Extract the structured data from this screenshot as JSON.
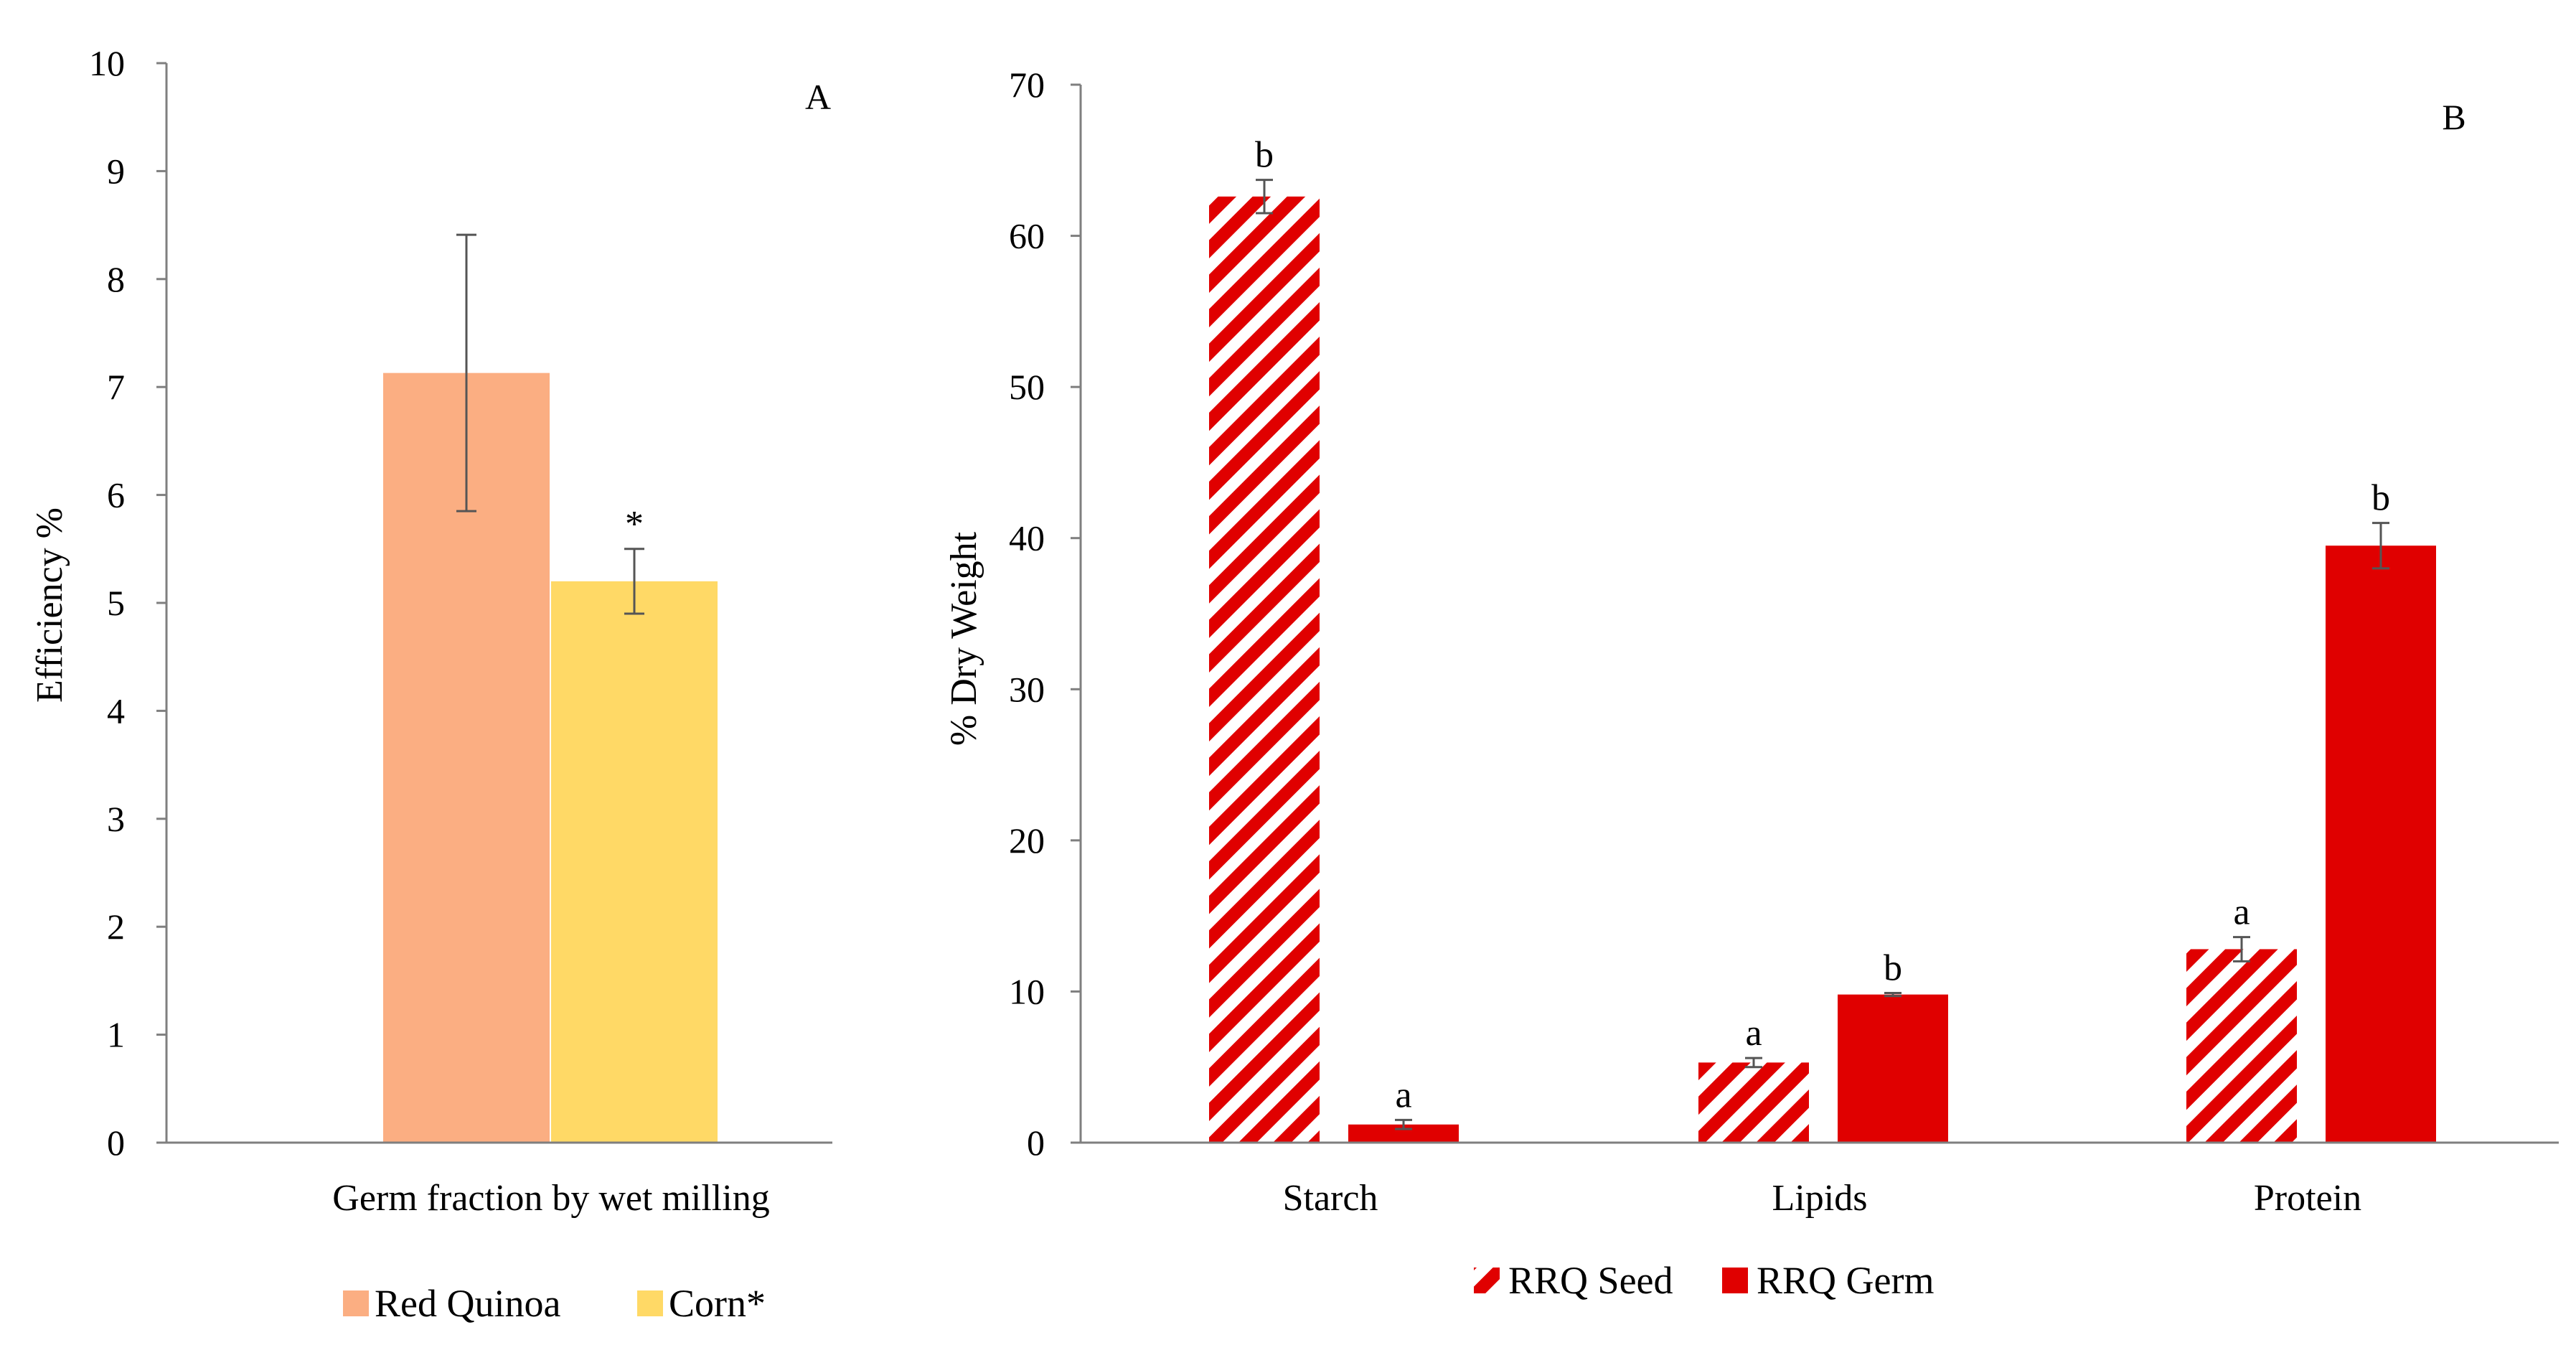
{
  "chart_data": [
    {
      "id": "A",
      "type": "bar",
      "panel_label": "A",
      "ylabel": "Efficiency %",
      "xlabel": "",
      "categories": [
        "Germ fraction by wet milling"
      ],
      "ylim": [
        0,
        10
      ],
      "yticks": [
        0,
        1,
        2,
        3,
        4,
        5,
        6,
        7,
        8,
        9,
        10
      ],
      "series": [
        {
          "name": "Red Quinoa",
          "color": "#FBAE82",
          "values": [
            7.13
          ],
          "error": [
            1.28
          ],
          "label": ""
        },
        {
          "name": "Corn*",
          "color": "#FFD966",
          "values": [
            5.2
          ],
          "error": [
            0.3
          ],
          "label": "*"
        }
      ],
      "legend": "bottom"
    },
    {
      "id": "B",
      "type": "bar",
      "panel_label": "B",
      "ylabel": "% Dry Weight",
      "xlabel": "",
      "categories": [
        "Starch",
        "Lipids",
        "Protein"
      ],
      "ylim": [
        0,
        70
      ],
      "yticks": [
        0,
        10,
        20,
        30,
        40,
        50,
        60,
        70
      ],
      "series": [
        {
          "name": "RRQ Seed",
          "color": "#E00000",
          "pattern": "diagonal-stripes",
          "values": [
            62.6,
            5.3,
            12.8
          ],
          "error": [
            1.1,
            0.3,
            0.8
          ],
          "labels": [
            "b",
            "a",
            "a"
          ]
        },
        {
          "name": "RRQ Germ",
          "color": "#E00000",
          "pattern": "solid",
          "values": [
            1.2,
            9.8,
            39.5
          ],
          "error": [
            0.3,
            0.1,
            1.5
          ],
          "labels": [
            "a",
            "b",
            "b"
          ]
        }
      ],
      "legend": "bottom"
    }
  ]
}
